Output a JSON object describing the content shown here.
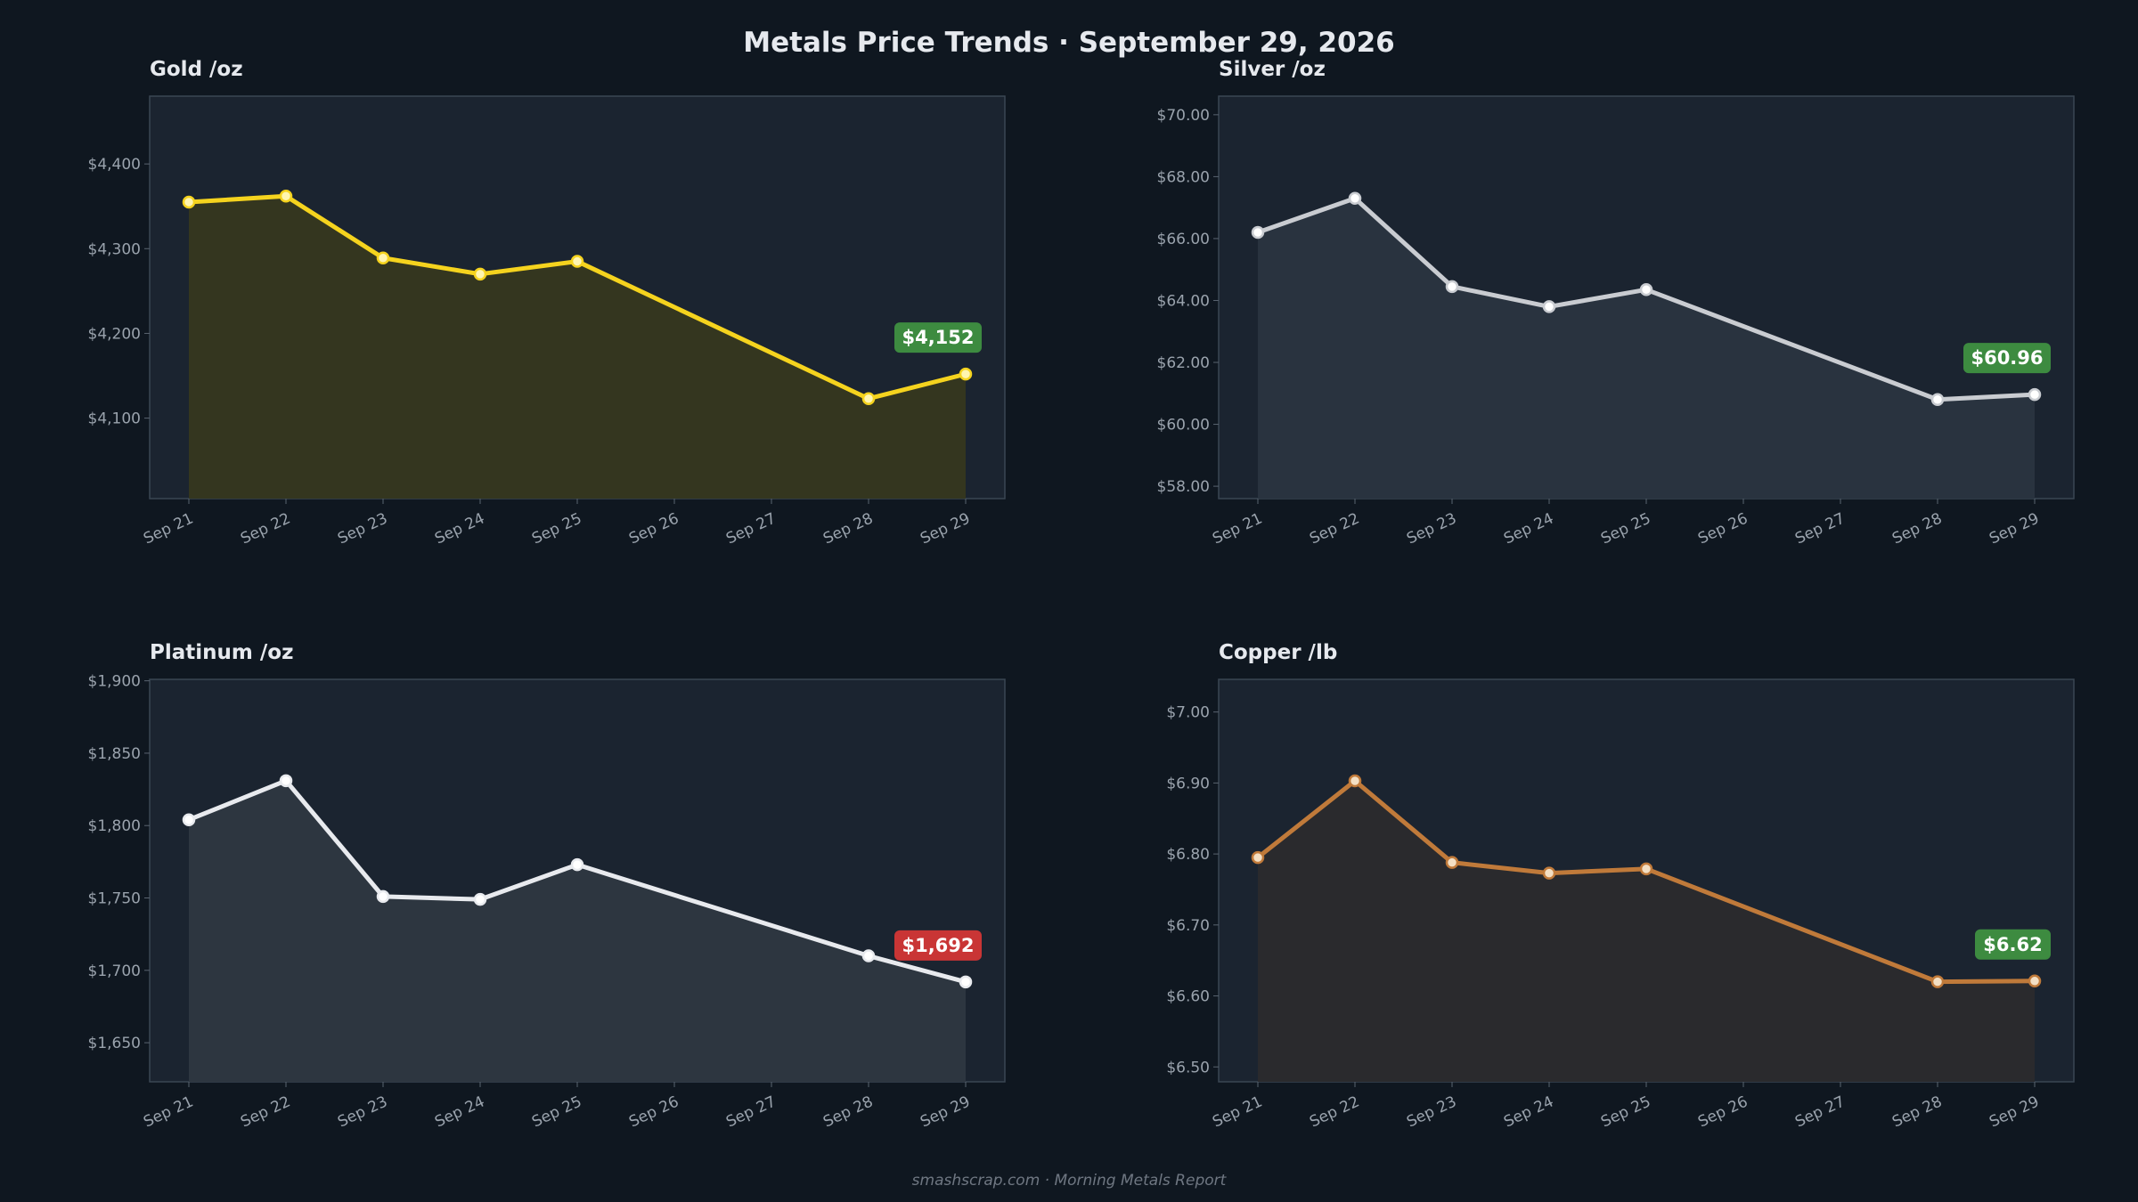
{
  "page": {
    "title": "Metals Price Trends  ·  September 29, 2026",
    "footer": "smashscrap.com  ·  Morning Metals Report"
  },
  "colors": {
    "background": "#0f1720",
    "plot_background": "#1b2430",
    "gold": "#f5d31e",
    "silver": "#c9ccd1",
    "platinum": "#e8eaee",
    "copper": "#c07a3a",
    "badge_up": "#3d8b40",
    "badge_down": "#c93535"
  },
  "chart_data": [
    {
      "type": "line",
      "title": "Gold  /oz",
      "x": [
        "Sep 21",
        "Sep 22",
        "Sep 23",
        "Sep 24",
        "Sep 25",
        "Sep 26",
        "Sep 27",
        "Sep 28",
        "Sep 29"
      ],
      "series": [
        {
          "x": [
            "Sep 21",
            "Sep 22",
            "Sep 23",
            "Sep 24",
            "Sep 25",
            "Sep 28",
            "Sep 29"
          ],
          "values": [
            4355,
            4362,
            4289,
            4270,
            4285,
            4123,
            4152
          ],
          "color": "#f5d31e"
        }
      ],
      "ylim": [
        4005,
        4480
      ],
      "yticks": [
        4100,
        4200,
        4300,
        4400
      ],
      "ytick_labels": [
        "$4,100",
        "$4,200",
        "$4,300",
        "$4,400"
      ],
      "grid": false,
      "badge": {
        "label": "$4,152",
        "direction": "up"
      }
    },
    {
      "type": "line",
      "title": "Silver  /oz",
      "x": [
        "Sep 21",
        "Sep 22",
        "Sep 23",
        "Sep 24",
        "Sep 25",
        "Sep 26",
        "Sep 27",
        "Sep 28",
        "Sep 29"
      ],
      "series": [
        {
          "x": [
            "Sep 21",
            "Sep 22",
            "Sep 23",
            "Sep 24",
            "Sep 25",
            "Sep 28",
            "Sep 29"
          ],
          "values": [
            66.2,
            67.3,
            64.45,
            63.8,
            64.35,
            60.8,
            60.96
          ],
          "color": "#c9ccd1"
        }
      ],
      "ylim": [
        57.6,
        70.6
      ],
      "yticks": [
        58,
        60,
        62,
        64,
        66,
        68,
        70
      ],
      "ytick_labels": [
        "$58.00",
        "$60.00",
        "$62.00",
        "$64.00",
        "$66.00",
        "$68.00",
        "$70.00"
      ],
      "grid": false,
      "badge": {
        "label": "$60.96",
        "direction": "up"
      }
    },
    {
      "type": "line",
      "title": "Platinum  /oz",
      "x": [
        "Sep 21",
        "Sep 22",
        "Sep 23",
        "Sep 24",
        "Sep 25",
        "Sep 26",
        "Sep 27",
        "Sep 28",
        "Sep 29"
      ],
      "series": [
        {
          "x": [
            "Sep 21",
            "Sep 22",
            "Sep 23",
            "Sep 24",
            "Sep 25",
            "Sep 28",
            "Sep 29"
          ],
          "values": [
            1804,
            1831,
            1751,
            1749,
            1773,
            1710,
            1692
          ],
          "color": "#e8eaee"
        }
      ],
      "ylim": [
        1623,
        1901
      ],
      "yticks": [
        1650,
        1700,
        1750,
        1800,
        1850,
        1900
      ],
      "ytick_labels": [
        "$1,650",
        "$1,700",
        "$1,750",
        "$1,800",
        "$1,850",
        "$1,900"
      ],
      "grid": false,
      "badge": {
        "label": "$1,692",
        "direction": "down"
      }
    },
    {
      "type": "line",
      "title": "Copper  /lb",
      "x": [
        "Sep 21",
        "Sep 22",
        "Sep 23",
        "Sep 24",
        "Sep 25",
        "Sep 26",
        "Sep 27",
        "Sep 28",
        "Sep 29"
      ],
      "series": [
        {
          "x": [
            "Sep 21",
            "Sep 22",
            "Sep 23",
            "Sep 24",
            "Sep 25",
            "Sep 28",
            "Sep 29"
          ],
          "values": [
            6.795,
            6.903,
            6.788,
            6.773,
            6.779,
            6.62,
            6.621
          ],
          "color": "#c07a3a"
        }
      ],
      "ylim": [
        6.479,
        7.046
      ],
      "yticks": [
        6.5,
        6.6,
        6.7,
        6.8,
        6.9,
        7.0
      ],
      "ytick_labels": [
        "$6.50",
        "$6.60",
        "$6.70",
        "$6.80",
        "$6.90",
        "$7.00"
      ],
      "grid": false,
      "badge": {
        "label": "$6.62",
        "direction": "up"
      }
    }
  ]
}
